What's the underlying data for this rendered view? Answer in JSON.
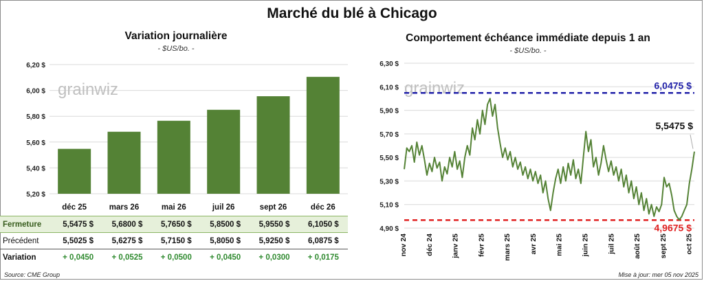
{
  "title": "Marché du blé à Chicago",
  "left": {
    "subtitle": "Variation journalière",
    "units": "- $US/bo. -",
    "logo": "grainwiz",
    "table": {
      "row_labels": [
        "Fermeture",
        "Précédent",
        "Variation"
      ],
      "close": [
        "5,5475  $",
        "5,6800  $",
        "5,7650  $",
        "5,8500  $",
        "5,9550  $",
        "6,1050  $"
      ],
      "previous": [
        "5,5025  $",
        "5,6275  $",
        "5,7150  $",
        "5,8050  $",
        "5,9250  $",
        "6,0875  $"
      ],
      "change": [
        "+ 0,0450",
        "+ 0,0525",
        "+ 0,0500",
        "+ 0,0450",
        "+ 0,0300",
        "+ 0,0175"
      ]
    }
  },
  "right": {
    "subtitle": "Comportement échéance immédiate depuis 1 an",
    "units": "- $US/bo. -",
    "logo": "grainwiz"
  },
  "footer": {
    "source": "Source: CME Group",
    "updated": "Mise à jour: mer 05 nov 2025"
  },
  "colors": {
    "bar": "#548235",
    "line": "#548235",
    "high": "#1f1fa8",
    "low": "#e02020"
  },
  "chart_data": [
    {
      "type": "bar",
      "title": "Variation journalière",
      "categories": [
        "déc 25",
        "mars 26",
        "mai 26",
        "juil 26",
        "sept 26",
        "déc 26"
      ],
      "values": [
        5.5475,
        5.68,
        5.765,
        5.85,
        5.955,
        6.105
      ],
      "ylim": [
        5.2,
        6.2
      ],
      "yticks": [
        5.2,
        5.4,
        5.6,
        5.8,
        6.0,
        6.2
      ],
      "ytick_labels": [
        "5,20 $",
        "5,40 $",
        "5,60 $",
        "5,80 $",
        "6,00 $",
        "6,20 $"
      ],
      "grid": true
    },
    {
      "type": "line",
      "title": "Comportement échéance immédiate depuis 1 an",
      "x_labels": [
        "nov 24",
        "déc 24",
        "janv 25",
        "févr 25",
        "mars 25",
        "avr 25",
        "mai 25",
        "juin 25",
        "juil 25",
        "août 25",
        "sept 25",
        "oct 25"
      ],
      "ylim": [
        4.9,
        6.3
      ],
      "yticks": [
        4.9,
        5.1,
        5.3,
        5.5,
        5.7,
        5.9,
        6.1,
        6.3
      ],
      "ytick_labels": [
        "4,90 $",
        "5,10 $",
        "5,30 $",
        "5,50 $",
        "5,70 $",
        "5,90 $",
        "6,10 $",
        "6,30 $"
      ],
      "y": [
        5.4,
        5.58,
        5.55,
        5.6,
        5.46,
        5.63,
        5.52,
        5.6,
        5.48,
        5.35,
        5.45,
        5.38,
        5.5,
        5.41,
        5.46,
        5.3,
        5.42,
        5.36,
        5.5,
        5.42,
        5.55,
        5.4,
        5.47,
        5.33,
        5.5,
        5.6,
        5.52,
        5.75,
        5.65,
        5.82,
        5.7,
        5.9,
        5.78,
        5.95,
        6.0,
        5.85,
        5.95,
        5.75,
        5.62,
        5.5,
        5.58,
        5.48,
        5.55,
        5.42,
        5.5,
        5.4,
        5.46,
        5.35,
        5.42,
        5.32,
        5.4,
        5.3,
        5.38,
        5.28,
        5.35,
        5.2,
        5.3,
        5.15,
        5.05,
        5.2,
        5.32,
        5.4,
        5.28,
        5.42,
        5.3,
        5.45,
        5.35,
        5.48,
        5.32,
        5.4,
        5.28,
        5.5,
        5.72,
        5.55,
        5.65,
        5.42,
        5.5,
        5.35,
        5.45,
        5.6,
        5.48,
        5.38,
        5.47,
        5.35,
        5.42,
        5.3,
        5.4,
        5.25,
        5.35,
        5.2,
        5.3,
        5.15,
        5.25,
        5.1,
        5.2,
        5.05,
        5.15,
        5.02,
        5.1,
        5.0,
        5.08,
        5.04,
        5.1,
        5.33,
        5.25,
        5.28,
        5.18,
        5.05,
        5.0,
        4.97,
        5.0,
        5.05,
        5.1,
        5.28,
        5.4,
        5.55
      ],
      "reference_lines": [
        {
          "value": 6.0475,
          "label": "6,0475 $"
        },
        {
          "value": 4.9675,
          "label": "4,9675 $"
        }
      ],
      "last_value_label": "5,5475 $",
      "grid": true
    }
  ]
}
